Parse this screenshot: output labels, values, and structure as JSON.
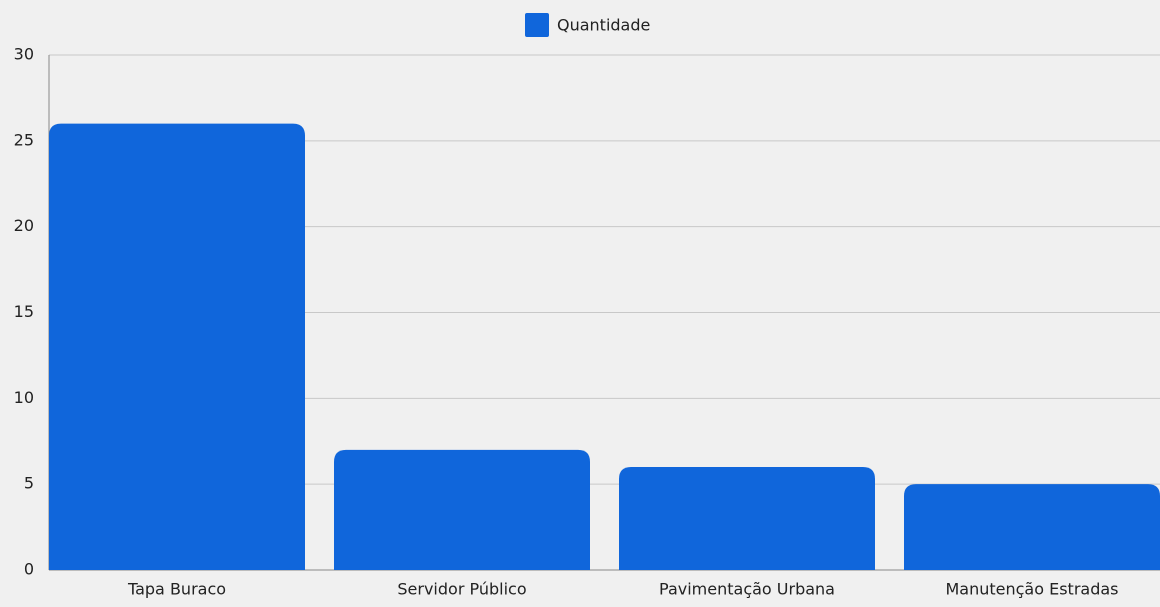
{
  "chart_data": {
    "type": "bar",
    "categories": [
      "Tapa Buraco",
      "Servidor Público",
      "Pavimentação Urbana",
      "Manutenção Estradas"
    ],
    "series": [
      {
        "name": "Quantidade",
        "color": "#1066db",
        "values": [
          26,
          7,
          6,
          5
        ]
      }
    ],
    "ylim": [
      0,
      30
    ],
    "yticks": [
      0,
      5,
      10,
      15,
      20,
      25,
      30
    ],
    "grid": true,
    "legend": "top"
  }
}
